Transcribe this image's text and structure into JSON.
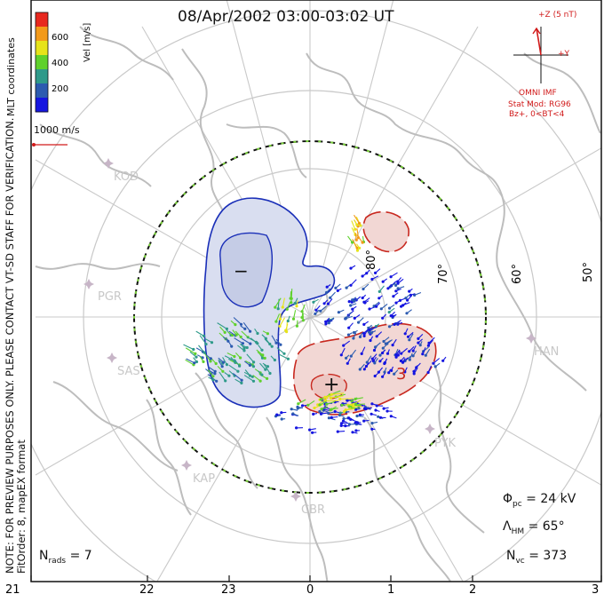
{
  "title": "08/Apr/2002 03:00-03:02 UT",
  "colorbar": {
    "title": "Vel [m/s]",
    "ticks": [
      "600",
      "400",
      "200"
    ],
    "colors": [
      "#e8281f",
      "#f39a1a",
      "#e6e31a",
      "#5fd12c",
      "#2f9a8a",
      "#2c5bb0",
      "#1515e0"
    ]
  },
  "mlt_label": "MLT coordinates",
  "scale_vector_label": "1000 m/s",
  "side_note": {
    "line1": "NOTE: FOR PREVIEW PURPOSES ONLY.  PLEASE CONTACT VT-SD STAFF FOR VERIFICATION.",
    "line2": "FitOrder: 8,  mapEX format"
  },
  "imf": {
    "z_label": "+Z (5 nT)",
    "y_label": "+Y",
    "source": "OMNI IMF",
    "stat_model": "Stat Mod: RG96",
    "condition": "Bz+, 0<BT<4"
  },
  "latitude_labels": [
    "80°",
    "70°",
    "60°",
    "50°"
  ],
  "stations": [
    "KOD",
    "PGR",
    "SAS",
    "KAP",
    "CBR",
    "PYK",
    "HAN"
  ],
  "cells": {
    "negative_symbol": "−",
    "positive_symbol": "+",
    "contour_label": "3"
  },
  "stats": {
    "phi_pc": {
      "symbol": "Φ",
      "sub": "pc",
      "value": "= 24 kV"
    },
    "lambda_hm": {
      "symbol": "Λ",
      "sub": "HM",
      "value": "= 65°"
    },
    "n_vc": {
      "symbol": "N",
      "sub": "vc",
      "value": "= 373"
    },
    "n_rads": {
      "symbol": "N",
      "sub": "rads",
      "value": "= 7"
    }
  },
  "mlt_axis": [
    "21",
    "22",
    "23",
    "0",
    "1",
    "2",
    "3"
  ],
  "palette": {
    "neg_fill": "#d9def0",
    "neg_line": "#1a2fb8",
    "pos_fill": "#f2d7d4",
    "pos_line": "#c8281f",
    "coast": "#bdbdbd",
    "grid": "#c9c9c9",
    "station": "#c7b5c7",
    "imf": "#d11a1a"
  }
}
